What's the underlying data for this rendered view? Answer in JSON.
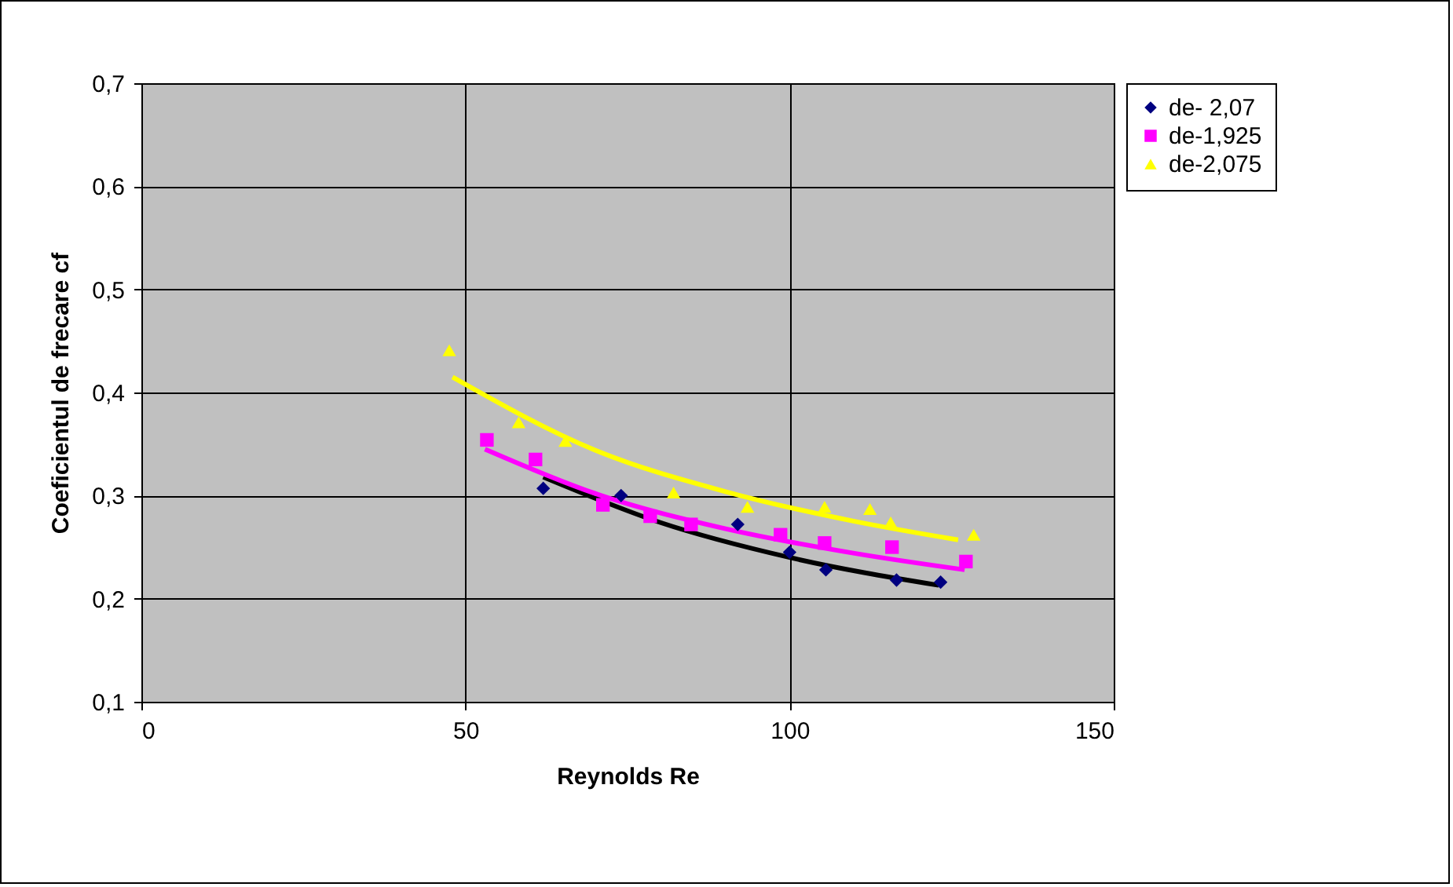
{
  "chart_data": {
    "type": "scatter",
    "xlabel": "Reynolds Re",
    "ylabel": "Coeficientul de frecare cf",
    "xlim": [
      0,
      150
    ],
    "xticks": [
      0,
      50,
      100,
      150
    ],
    "ylim": [
      0.1,
      0.7
    ],
    "yticks": [
      {
        "value": 0.1,
        "label": "0,1"
      },
      {
        "value": 0.2,
        "label": "0,2"
      },
      {
        "value": 0.3,
        "label": "0,3"
      },
      {
        "value": 0.4,
        "label": "0,4"
      },
      {
        "value": 0.5,
        "label": "0,5"
      },
      {
        "value": 0.6,
        "label": "0,6"
      },
      {
        "value": 0.7,
        "label": "0,7"
      }
    ],
    "grid": true,
    "legend": "right",
    "series": [
      {
        "name": "de- 2,07",
        "marker": "diamond",
        "color": "#000080",
        "x": [
          62,
          74,
          92,
          100,
          105.6,
          116.5,
          123.3
        ],
        "values": [
          0.307,
          0.3,
          0.272,
          0.245,
          0.228,
          0.218,
          0.216
        ]
      },
      {
        "name": "de-1,925",
        "marker": "square",
        "color": "#ff00ff",
        "x": [
          53.3,
          60.8,
          71.2,
          78.5,
          84.8,
          98.6,
          105.4,
          115.8,
          127.2
        ],
        "values": [
          0.354,
          0.335,
          0.291,
          0.28,
          0.272,
          0.262,
          0.254,
          0.25,
          0.236
        ]
      },
      {
        "name": "de-2,075",
        "marker": "triangle",
        "color": "#ffff00",
        "x": [
          47.5,
          58.2,
          65.4,
          82.1,
          93.5,
          105.4,
          112.4,
          115.6,
          128.4
        ],
        "values": [
          0.441,
          0.371,
          0.353,
          0.303,
          0.289,
          0.289,
          0.287,
          0.274,
          0.262
        ]
      },
      {
        "type": "line",
        "marker": "none",
        "line_style": "solid",
        "color": "#000000",
        "x": [
          62,
          80,
          100,
          123
        ],
        "values": [
          0.318,
          0.274,
          0.24,
          0.213
        ]
      },
      {
        "type": "line",
        "marker": "none",
        "line_style": "solid",
        "color": "#ff00ff",
        "x": [
          53,
          70,
          90,
          110,
          127
        ],
        "values": [
          0.345,
          0.302,
          0.268,
          0.244,
          0.228
        ]
      },
      {
        "type": "line",
        "marker": "none",
        "line_style": "solid",
        "color": "#ffff00",
        "x": [
          48,
          70,
          90,
          110,
          126
        ],
        "values": [
          0.415,
          0.344,
          0.304,
          0.275,
          0.257
        ]
      }
    ]
  }
}
